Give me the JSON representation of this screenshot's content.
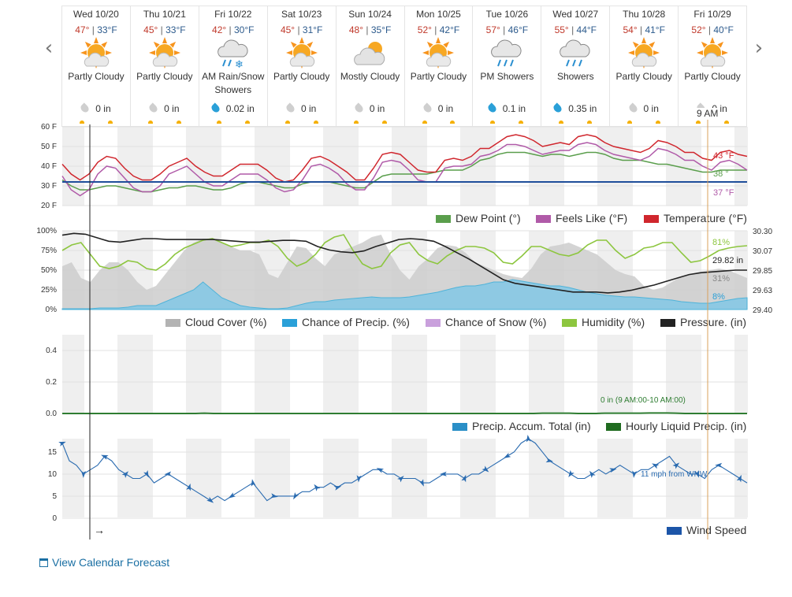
{
  "days": [
    {
      "name": "Wed 10/20",
      "hi": "47°",
      "lo": "33°F",
      "icon": "partly-cloudy-icon",
      "cond": "Partly Cloudy",
      "precip": "0 in",
      "drop": "gray"
    },
    {
      "name": "Thu 10/21",
      "hi": "45°",
      "lo": "33°F",
      "icon": "partly-cloudy-icon",
      "cond": "Partly Cloudy",
      "precip": "0 in",
      "drop": "gray"
    },
    {
      "name": "Fri 10/22",
      "hi": "42°",
      "lo": "30°F",
      "icon": "rain-snow-icon",
      "cond": "AM Rain/Snow Showers",
      "precip": "0.02 in",
      "drop": "blue"
    },
    {
      "name": "Sat 10/23",
      "hi": "45°",
      "lo": "31°F",
      "icon": "partly-cloudy-icon",
      "cond": "Partly Cloudy",
      "precip": "0 in",
      "drop": "gray"
    },
    {
      "name": "Sun 10/24",
      "hi": "48°",
      "lo": "35°F",
      "icon": "mostly-cloudy-icon",
      "cond": "Mostly Cloudy",
      "precip": "0 in",
      "drop": "gray"
    },
    {
      "name": "Mon 10/25",
      "hi": "52°",
      "lo": "42°F",
      "icon": "partly-cloudy-icon",
      "cond": "Partly Cloudy",
      "precip": "0 in",
      "drop": "gray"
    },
    {
      "name": "Tue 10/26",
      "hi": "57°",
      "lo": "46°F",
      "icon": "showers-icon",
      "cond": "PM Showers",
      "precip": "0.1 in",
      "drop": "blue"
    },
    {
      "name": "Wed 10/27",
      "hi": "55°",
      "lo": "44°F",
      "icon": "showers-icon",
      "cond": "Showers",
      "precip": "0.35 in",
      "drop": "blue"
    },
    {
      "name": "Thu 10/28",
      "hi": "54°",
      "lo": "41°F",
      "icon": "partly-cloudy-icon",
      "cond": "Partly Cloudy",
      "precip": "0 in",
      "drop": "gray"
    },
    {
      "name": "Fri 10/29",
      "hi": "52°",
      "lo": "40°F",
      "icon": "partly-cloudy-icon",
      "cond": "Partly Cloudy",
      "precip": "0 in",
      "drop": "gray"
    }
  ],
  "time_marker": "9 AM",
  "temp_panel": {
    "yticks": [
      "60 F",
      "50 F",
      "40 F",
      "30 F",
      "20 F"
    ],
    "current": {
      "temp": "43 °F",
      "dew": "38 °",
      "feels": "37 °F"
    },
    "legend": [
      "Dew Point (°)",
      "Feels Like (°F)",
      "Temperature (°F)"
    ]
  },
  "cloud_panel": {
    "yticks": [
      "100%",
      "75%",
      "50%",
      "25%",
      "0%"
    ],
    "right_ticks": [
      "30.30",
      "30.07",
      "29.85",
      "29.63",
      "29.40"
    ],
    "current": {
      "humidity": "81%",
      "pressure": "29.82 in",
      "cloud": "31%",
      "precip": "8%"
    },
    "legend": [
      "Cloud Cover (%)",
      "Chance of Precip. (%)",
      "Chance of Snow (%)",
      "Humidity (%)",
      "Pressure. (in)"
    ]
  },
  "precip_panel": {
    "yticks": [
      "0.4",
      "0.2",
      "0.0"
    ],
    "tooltip": "0 in (9 AM:00-10 AM:00)",
    "legend": [
      "Precip. Accum. Total (in)",
      "Hourly Liquid Precip. (in)"
    ]
  },
  "wind_panel": {
    "yticks": [
      "15",
      "10",
      "5",
      "0"
    ],
    "tooltip": "11 mph from WNW",
    "legend": [
      "Wind Speed"
    ],
    "arrow": "→"
  },
  "footer": {
    "link": "View Calendar Forecast"
  },
  "colors": {
    "temp": "#d0262d",
    "feels": "#b05aa8",
    "dew": "#5a9e4c",
    "freeze": "#1f4e9a",
    "humidity": "#8dc63f",
    "cloud": "#b3b3b3",
    "precip": "#4fb3d9",
    "pressure": "#222222",
    "wind": "#2a6bb0",
    "accent": "#1a6fa3"
  },
  "chart_data": [
    {
      "type": "line",
      "title": "",
      "ylabel": "°F",
      "ylim": [
        20,
        60
      ],
      "series": [
        {
          "name": "Temperature (°F)",
          "values": [
            41,
            36,
            33,
            36,
            42,
            45,
            44,
            39,
            35,
            33,
            33,
            36,
            40,
            42,
            44,
            40,
            37,
            35,
            35,
            38,
            41,
            41,
            41,
            38,
            34,
            32,
            33,
            38,
            44,
            45,
            43,
            40,
            37,
            33,
            33,
            39,
            46,
            47,
            46,
            42,
            38,
            37,
            37,
            43,
            44,
            43,
            45,
            49,
            49,
            52,
            55,
            56,
            55,
            53,
            50,
            51,
            52,
            51,
            55,
            56,
            55,
            52,
            50,
            49,
            48,
            47,
            49,
            53,
            52,
            50,
            47,
            47,
            44,
            43,
            47,
            48,
            46,
            45
          ]
        },
        {
          "name": "Feels Like (°F)",
          "values": [
            35,
            28,
            25,
            28,
            36,
            40,
            39,
            34,
            29,
            27,
            27,
            30,
            36,
            38,
            40,
            36,
            32,
            30,
            30,
            33,
            36,
            36,
            36,
            33,
            29,
            27,
            28,
            33,
            40,
            41,
            39,
            36,
            31,
            28,
            28,
            34,
            42,
            43,
            42,
            38,
            33,
            32,
            32,
            39,
            40,
            40,
            41,
            45,
            46,
            48,
            51,
            51,
            50,
            48,
            46,
            47,
            48,
            48,
            51,
            52,
            51,
            48,
            46,
            45,
            44,
            43,
            45,
            49,
            48,
            46,
            43,
            43,
            40,
            38,
            42,
            43,
            41,
            38
          ]
        },
        {
          "name": "Dew Point (°)",
          "values": [
            33,
            30,
            28,
            28,
            29,
            30,
            30,
            29,
            28,
            27,
            27,
            28,
            29,
            29,
            30,
            30,
            29,
            28,
            28,
            29,
            31,
            32,
            32,
            31,
            30,
            29,
            29,
            31,
            32,
            32,
            32,
            31,
            30,
            29,
            29,
            32,
            35,
            36,
            36,
            36,
            36,
            36,
            37,
            38,
            38,
            38,
            40,
            43,
            44,
            46,
            47,
            47,
            47,
            46,
            45,
            46,
            46,
            45,
            46,
            47,
            47,
            46,
            44,
            43,
            43,
            43,
            42,
            41,
            41,
            40,
            39,
            38,
            37,
            37,
            38,
            38,
            38,
            38
          ]
        }
      ]
    },
    {
      "type": "area",
      "title": "",
      "ylim": [
        0,
        100
      ],
      "series": [
        {
          "name": "Cloud Cover (%)",
          "values": [
            55,
            60,
            40,
            35,
            50,
            60,
            60,
            50,
            35,
            25,
            30,
            45,
            60,
            75,
            85,
            90,
            90,
            85,
            80,
            75,
            75,
            70,
            45,
            40,
            60,
            80,
            78,
            65,
            55,
            70,
            75,
            80,
            85,
            92,
            95,
            70,
            50,
            38,
            55,
            65,
            78,
            82,
            80,
            72,
            60,
            55,
            50,
            45,
            42,
            40,
            52,
            70,
            80,
            82,
            85,
            80,
            75,
            70,
            60,
            50,
            45,
            42,
            30,
            25,
            28,
            35,
            42,
            45,
            48,
            50,
            52,
            50,
            45,
            40
          ]
        },
        {
          "name": "Chance of Precip. (%)",
          "values": [
            1,
            1,
            1,
            1,
            2,
            2,
            2,
            3,
            5,
            5,
            5,
            10,
            15,
            20,
            25,
            35,
            25,
            15,
            10,
            5,
            3,
            2,
            1,
            1,
            2,
            5,
            8,
            10,
            10,
            12,
            13,
            14,
            15,
            16,
            15,
            15,
            15,
            16,
            18,
            20,
            22,
            25,
            28,
            30,
            30,
            32,
            35,
            35,
            38,
            36,
            34,
            32,
            30,
            30,
            28,
            25,
            22,
            20,
            18,
            17,
            16,
            16,
            15,
            14,
            13,
            12,
            10,
            9,
            8,
            8,
            10,
            12,
            14,
            15
          ]
        },
        {
          "name": "Humidity (%)",
          "values": [
            75,
            82,
            85,
            70,
            55,
            52,
            55,
            62,
            60,
            52,
            50,
            58,
            70,
            78,
            83,
            88,
            90,
            85,
            80,
            82,
            85,
            85,
            88,
            80,
            65,
            55,
            60,
            70,
            85,
            92,
            95,
            75,
            58,
            52,
            55,
            72,
            82,
            85,
            70,
            62,
            58,
            68,
            75,
            80,
            80,
            78,
            72,
            60,
            58,
            68,
            80,
            80,
            75,
            70,
            68,
            72,
            82,
            88,
            88,
            75,
            65,
            70,
            78,
            80,
            85,
            85,
            72,
            60,
            62,
            68,
            75,
            78,
            80,
            81
          ]
        },
        {
          "name": "Pressure. (in)",
          "values": [
            30.25,
            30.27,
            30.26,
            30.22,
            30.18,
            30.17,
            30.19,
            30.21,
            30.21,
            30.2,
            30.2,
            30.2,
            30.2,
            30.2,
            30.19,
            30.18,
            30.17,
            30.17,
            30.18,
            30.19,
            30.19,
            30.18,
            30.12,
            30.08,
            30.06,
            30.05,
            30.07,
            30.12,
            30.16,
            30.2,
            30.21,
            30.2,
            30.18,
            30.12,
            30.05,
            29.98,
            29.9,
            29.82,
            29.74,
            29.7,
            29.68,
            29.66,
            29.64,
            29.62,
            29.6,
            29.6,
            29.6,
            29.59,
            29.6,
            29.62,
            29.65,
            29.68,
            29.72,
            29.76,
            29.8,
            29.82,
            29.83,
            29.84,
            29.85,
            29.85
          ]
        }
      ]
    },
    {
      "type": "line",
      "title": "",
      "ylim": [
        0,
        0.5
      ],
      "series": [
        {
          "name": "Hourly Liquid Precip. (in)",
          "values": [
            0,
            0,
            0,
            0,
            0,
            0,
            0,
            0,
            0,
            0,
            0,
            0,
            0,
            0,
            0,
            0,
            0.002,
            0,
            0,
            0,
            0,
            0,
            0,
            0,
            0,
            0,
            0,
            0,
            0,
            0,
            0,
            0,
            0,
            0,
            0,
            0,
            0,
            0,
            0,
            0,
            0,
            0,
            0,
            0,
            0,
            0,
            0,
            0,
            0,
            0,
            0,
            0,
            0,
            0,
            0.002,
            0.002,
            0.002,
            0.002,
            0,
            0,
            0,
            0.002,
            0.002,
            0.002,
            0.002,
            0.002,
            0.003,
            0.003,
            0.003,
            0.002,
            0,
            0,
            0,
            0,
            0,
            0,
            0,
            0
          ]
        }
      ]
    },
    {
      "type": "line",
      "title": "",
      "ylim": [
        0,
        18
      ],
      "series": [
        {
          "name": "Wind Speed",
          "values": [
            17,
            13,
            12,
            10,
            11,
            12,
            14,
            13,
            11,
            10,
            9,
            9,
            10,
            8,
            9,
            10,
            9,
            8,
            7,
            6,
            5,
            4,
            5,
            4,
            5,
            6,
            7,
            8,
            6,
            4,
            5,
            5,
            5,
            5,
            6,
            6,
            7,
            7,
            8,
            7,
            8,
            8,
            9,
            10,
            11,
            11,
            10,
            10,
            9,
            9,
            9,
            8,
            8,
            9,
            10,
            10,
            10,
            9,
            10,
            10,
            11,
            12,
            13,
            14,
            15,
            17,
            18,
            17,
            15,
            13,
            12,
            11,
            10,
            9,
            9,
            10,
            11,
            10,
            11,
            12,
            11,
            10,
            11,
            11,
            12,
            13,
            14,
            12,
            11,
            10,
            10,
            9,
            11,
            12,
            11,
            10,
            9,
            8
          ]
        }
      ]
    }
  ]
}
